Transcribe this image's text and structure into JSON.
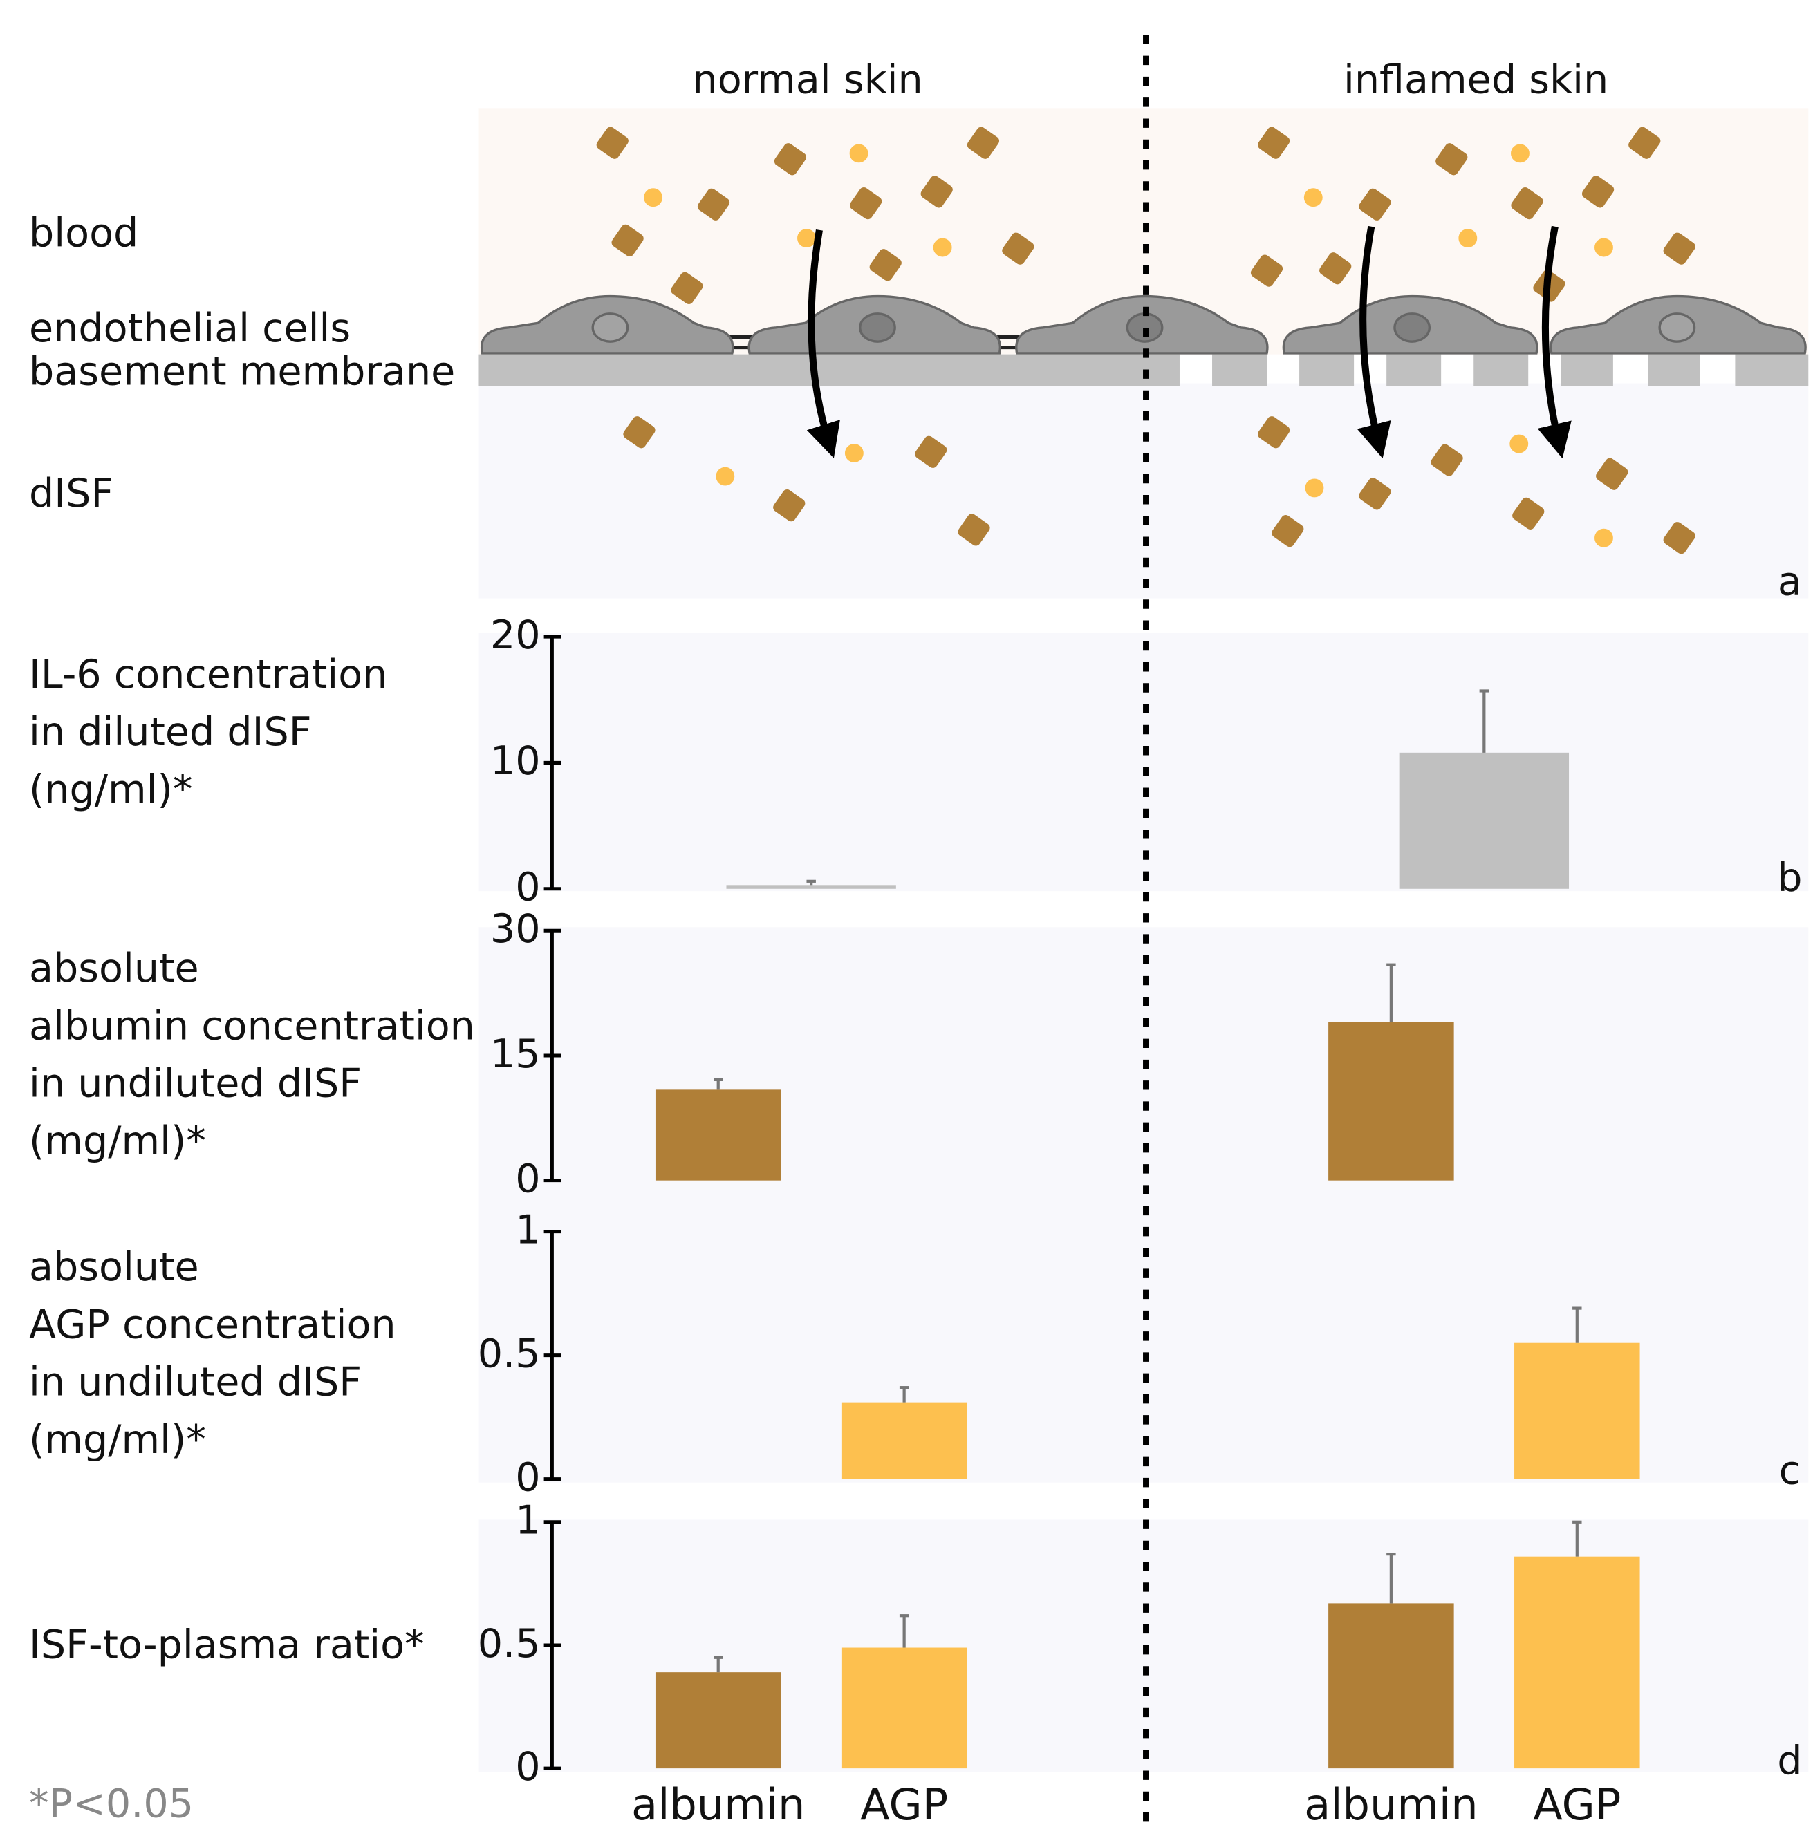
{
  "columns": [
    "normal skin",
    "inflamed skin"
  ],
  "diagram": {
    "layers": [
      "blood",
      "endothelial cells",
      "basement membrane",
      "dISF"
    ],
    "letter": "a"
  },
  "chart_data": [
    {
      "type": "bar",
      "ylabel": [
        "IL-6 concentration",
        "in diluted dISF",
        "(ng/ml)*"
      ],
      "values": [
        0.3,
        10.8
      ],
      "errors": [
        0.3,
        4.9
      ],
      "color": "#c0c0c0",
      "ylim": [
        0,
        20
      ],
      "yticks": [
        0,
        10,
        20
      ],
      "letter": "b"
    },
    {
      "type": "bar",
      "ylabel": [
        "absolute",
        "albumin concentration",
        "in undiluted dISF",
        "(mg/ml)*"
      ],
      "values": [
        10.9,
        19
      ],
      "errors": [
        1.2,
        6.9
      ],
      "color": "#b07f37",
      "ylim": [
        0,
        30
      ],
      "yticks": [
        0,
        15,
        30
      ]
    },
    {
      "type": "bar",
      "ylabel": [
        "absolute",
        "AGP concentration",
        "in undiluted dISF",
        "(mg/ml)*"
      ],
      "values": [
        0.31,
        0.55
      ],
      "errors": [
        0.06,
        0.14
      ],
      "color": "#fdc04f",
      "ylim": [
        0,
        1
      ],
      "yticks": [
        0,
        0.5,
        1
      ],
      "letter": "c"
    },
    {
      "type": "grouped-bar",
      "ylabel": [
        "ISF-to-plasma ratio*"
      ],
      "series": [
        {
          "name": "albumin",
          "color": "#b07f37",
          "values": [
            0.39,
            0.67
          ],
          "errors": [
            0.06,
            0.2
          ]
        },
        {
          "name": "AGP",
          "color": "#fdc04f",
          "values": [
            0.49,
            0.86
          ],
          "errors": [
            0.13,
            0.14
          ]
        }
      ],
      "ylim": [
        0,
        1
      ],
      "yticks": [
        0,
        0.5,
        1
      ],
      "letter": "d"
    }
  ],
  "footnote": "*P<0.05"
}
